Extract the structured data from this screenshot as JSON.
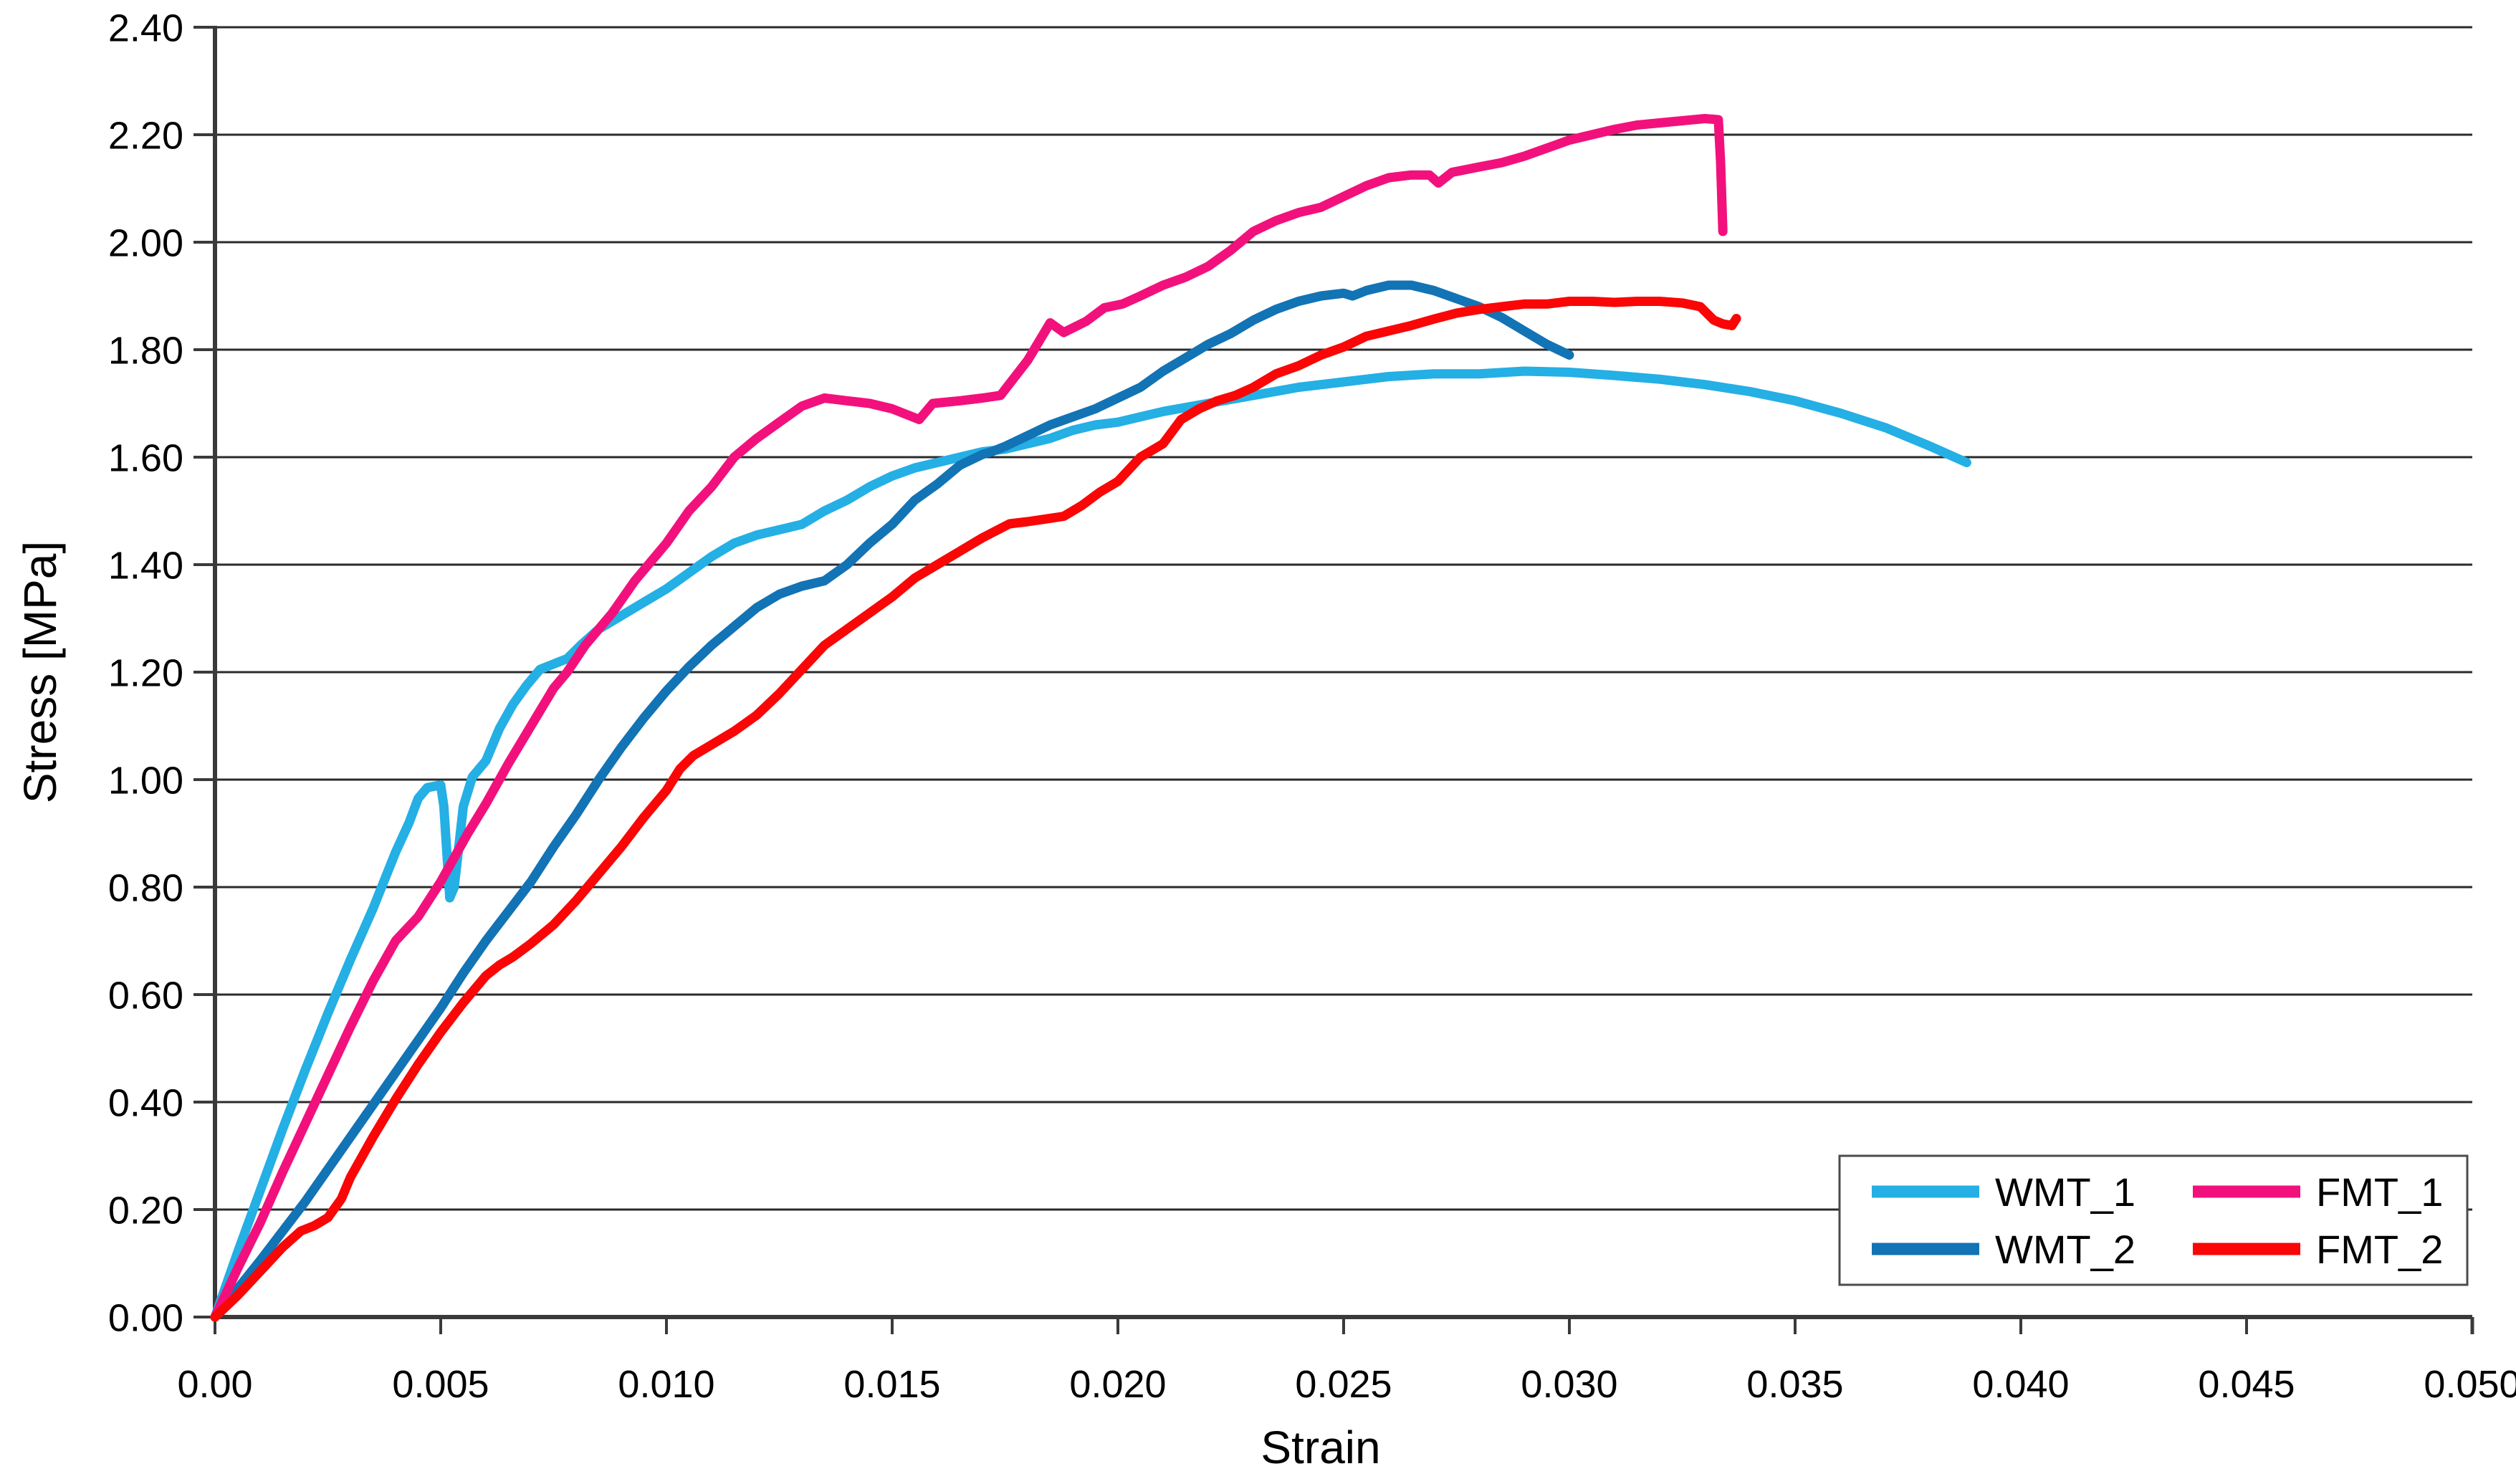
{
  "chart_data": {
    "type": "line",
    "title": "",
    "xlabel": "Strain",
    "ylabel": "Stress [MPa]",
    "xlim": [
      0,
      0.05
    ],
    "ylim": [
      0,
      2.4
    ],
    "grid": "horizontal",
    "legend_position": "bottom-right",
    "x_ticks": [
      {
        "v": 0.0,
        "label": "0.00"
      },
      {
        "v": 0.005,
        "label": "0.005"
      },
      {
        "v": 0.01,
        "label": "0.010"
      },
      {
        "v": 0.015,
        "label": "0.015"
      },
      {
        "v": 0.02,
        "label": "0.020"
      },
      {
        "v": 0.025,
        "label": "0.025"
      },
      {
        "v": 0.03,
        "label": "0.030"
      },
      {
        "v": 0.035,
        "label": "0.035"
      },
      {
        "v": 0.04,
        "label": "0.040"
      },
      {
        "v": 0.045,
        "label": "0.045"
      },
      {
        "v": 0.05,
        "label": "0.050"
      }
    ],
    "y_ticks": [
      {
        "v": 0.0,
        "label": "0.00"
      },
      {
        "v": 0.2,
        "label": "0.20"
      },
      {
        "v": 0.4,
        "label": "0.40"
      },
      {
        "v": 0.6,
        "label": "0.60"
      },
      {
        "v": 0.8,
        "label": "0.80"
      },
      {
        "v": 1.0,
        "label": "1.00"
      },
      {
        "v": 1.2,
        "label": "1.20"
      },
      {
        "v": 1.4,
        "label": "1.40"
      },
      {
        "v": 1.6,
        "label": "1.60"
      },
      {
        "v": 1.8,
        "label": "1.80"
      },
      {
        "v": 2.0,
        "label": "2.00"
      },
      {
        "v": 2.2,
        "label": "2.20"
      },
      {
        "v": 2.4,
        "label": "2.40"
      }
    ],
    "legend": {
      "entries": [
        "WMT_1",
        "WMT_2",
        "FMT_1",
        "FMT_2"
      ]
    },
    "series": [
      {
        "name": "WMT_1",
        "color": "#24AFE5",
        "points": [
          [
            0,
            0
          ],
          [
            0.0005,
            0.12
          ],
          [
            0.001,
            0.235
          ],
          [
            0.0015,
            0.35
          ],
          [
            0.002,
            0.46
          ],
          [
            0.0025,
            0.565
          ],
          [
            0.003,
            0.665
          ],
          [
            0.0035,
            0.76
          ],
          [
            0.004,
            0.865
          ],
          [
            0.0043,
            0.92
          ],
          [
            0.0045,
            0.965
          ],
          [
            0.0047,
            0.985
          ],
          [
            0.005,
            0.99
          ],
          [
            0.00507,
            0.95
          ],
          [
            0.0052,
            0.78
          ],
          [
            0.0053,
            0.8
          ],
          [
            0.0055,
            0.95
          ],
          [
            0.0057,
            1.005
          ],
          [
            0.006,
            1.035
          ],
          [
            0.0063,
            1.095
          ],
          [
            0.0066,
            1.14
          ],
          [
            0.0069,
            1.175
          ],
          [
            0.0072,
            1.205
          ],
          [
            0.0075,
            1.215
          ],
          [
            0.0078,
            1.225
          ],
          [
            0.0081,
            1.25
          ],
          [
            0.0085,
            1.28
          ],
          [
            0.009,
            1.305
          ],
          [
            0.0095,
            1.33
          ],
          [
            0.01,
            1.355
          ],
          [
            0.0105,
            1.385
          ],
          [
            0.011,
            1.415
          ],
          [
            0.0115,
            1.44
          ],
          [
            0.012,
            1.455
          ],
          [
            0.0125,
            1.465
          ],
          [
            0.013,
            1.475
          ],
          [
            0.0135,
            1.5
          ],
          [
            0.014,
            1.52
          ],
          [
            0.0145,
            1.545
          ],
          [
            0.015,
            1.565
          ],
          [
            0.0155,
            1.58
          ],
          [
            0.016,
            1.59
          ],
          [
            0.0165,
            1.6
          ],
          [
            0.017,
            1.61
          ],
          [
            0.0175,
            1.615
          ],
          [
            0.018,
            1.625
          ],
          [
            0.0185,
            1.635
          ],
          [
            0.019,
            1.65
          ],
          [
            0.0195,
            1.66
          ],
          [
            0.02,
            1.665
          ],
          [
            0.0205,
            1.675
          ],
          [
            0.021,
            1.685
          ],
          [
            0.022,
            1.7
          ],
          [
            0.023,
            1.715
          ],
          [
            0.024,
            1.73
          ],
          [
            0.025,
            1.74
          ],
          [
            0.026,
            1.75
          ],
          [
            0.027,
            1.755
          ],
          [
            0.028,
            1.755
          ],
          [
            0.029,
            1.76
          ],
          [
            0.03,
            1.758
          ],
          [
            0.031,
            1.752
          ],
          [
            0.032,
            1.745
          ],
          [
            0.033,
            1.735
          ],
          [
            0.034,
            1.722
          ],
          [
            0.035,
            1.705
          ],
          [
            0.036,
            1.682
          ],
          [
            0.037,
            1.655
          ],
          [
            0.038,
            1.62
          ],
          [
            0.0388,
            1.59
          ]
        ]
      },
      {
        "name": "WMT_2",
        "color": "#1273B5",
        "points": [
          [
            0,
            0
          ],
          [
            0.001,
            0.105
          ],
          [
            0.002,
            0.215
          ],
          [
            0.003,
            0.335
          ],
          [
            0.004,
            0.455
          ],
          [
            0.005,
            0.575
          ],
          [
            0.0055,
            0.64
          ],
          [
            0.006,
            0.7
          ],
          [
            0.0065,
            0.755
          ],
          [
            0.007,
            0.81
          ],
          [
            0.0075,
            0.875
          ],
          [
            0.008,
            0.935
          ],
          [
            0.0085,
            1.0
          ],
          [
            0.009,
            1.06
          ],
          [
            0.0095,
            1.115
          ],
          [
            0.01,
            1.165
          ],
          [
            0.0105,
            1.21
          ],
          [
            0.011,
            1.25
          ],
          [
            0.0115,
            1.285
          ],
          [
            0.012,
            1.32
          ],
          [
            0.0125,
            1.345
          ],
          [
            0.013,
            1.36
          ],
          [
            0.0135,
            1.37
          ],
          [
            0.014,
            1.4
          ],
          [
            0.0145,
            1.44
          ],
          [
            0.015,
            1.475
          ],
          [
            0.0155,
            1.52
          ],
          [
            0.016,
            1.55
          ],
          [
            0.0165,
            1.585
          ],
          [
            0.017,
            1.605
          ],
          [
            0.0172,
            1.61
          ],
          [
            0.0175,
            1.62
          ],
          [
            0.018,
            1.64
          ],
          [
            0.0185,
            1.66
          ],
          [
            0.019,
            1.675
          ],
          [
            0.0195,
            1.69
          ],
          [
            0.02,
            1.71
          ],
          [
            0.0205,
            1.73
          ],
          [
            0.021,
            1.76
          ],
          [
            0.0215,
            1.785
          ],
          [
            0.022,
            1.81
          ],
          [
            0.0225,
            1.83
          ],
          [
            0.023,
            1.855
          ],
          [
            0.0235,
            1.875
          ],
          [
            0.024,
            1.89
          ],
          [
            0.0245,
            1.9
          ],
          [
            0.025,
            1.905
          ],
          [
            0.0252,
            1.9
          ],
          [
            0.0255,
            1.91
          ],
          [
            0.026,
            1.92
          ],
          [
            0.0265,
            1.92
          ],
          [
            0.027,
            1.91
          ],
          [
            0.0275,
            1.895
          ],
          [
            0.028,
            1.88
          ],
          [
            0.0285,
            1.86
          ],
          [
            0.029,
            1.835
          ],
          [
            0.0295,
            1.81
          ],
          [
            0.03,
            1.79
          ]
        ]
      },
      {
        "name": "FMT_1",
        "color": "#F2117C",
        "points": [
          [
            0,
            0
          ],
          [
            0.0005,
            0.09
          ],
          [
            0.001,
            0.175
          ],
          [
            0.0015,
            0.27
          ],
          [
            0.002,
            0.36
          ],
          [
            0.0025,
            0.45
          ],
          [
            0.003,
            0.54
          ],
          [
            0.0035,
            0.625
          ],
          [
            0.004,
            0.7
          ],
          [
            0.0045,
            0.745
          ],
          [
            0.005,
            0.81
          ],
          [
            0.0053,
            0.855
          ],
          [
            0.0056,
            0.9
          ],
          [
            0.006,
            0.955
          ],
          [
            0.0065,
            1.03
          ],
          [
            0.007,
            1.1
          ],
          [
            0.0075,
            1.17
          ],
          [
            0.0078,
            1.2
          ],
          [
            0.0082,
            1.25
          ],
          [
            0.0088,
            1.31
          ],
          [
            0.0093,
            1.37
          ],
          [
            0.01,
            1.44
          ],
          [
            0.0105,
            1.5
          ],
          [
            0.011,
            1.545
          ],
          [
            0.0115,
            1.6
          ],
          [
            0.012,
            1.635
          ],
          [
            0.0125,
            1.665
          ],
          [
            0.013,
            1.695
          ],
          [
            0.0135,
            1.71
          ],
          [
            0.014,
            1.705
          ],
          [
            0.0145,
            1.7
          ],
          [
            0.015,
            1.69
          ],
          [
            0.0153,
            1.68
          ],
          [
            0.0156,
            1.67
          ],
          [
            0.0159,
            1.7
          ],
          [
            0.0165,
            1.705
          ],
          [
            0.017,
            1.71
          ],
          [
            0.0174,
            1.715
          ],
          [
            0.018,
            1.78
          ],
          [
            0.0185,
            1.85
          ],
          [
            0.0188,
            1.832
          ],
          [
            0.0193,
            1.853
          ],
          [
            0.0197,
            1.878
          ],
          [
            0.0201,
            1.885
          ],
          [
            0.0205,
            1.9
          ],
          [
            0.021,
            1.92
          ],
          [
            0.0215,
            1.935
          ],
          [
            0.022,
            1.955
          ],
          [
            0.0225,
            1.985
          ],
          [
            0.023,
            2.02
          ],
          [
            0.0235,
            2.04
          ],
          [
            0.024,
            2.055
          ],
          [
            0.0245,
            2.065
          ],
          [
            0.025,
            2.085
          ],
          [
            0.0255,
            2.105
          ],
          [
            0.026,
            2.12
          ],
          [
            0.0265,
            2.125
          ],
          [
            0.0269,
            2.125
          ],
          [
            0.0271,
            2.11
          ],
          [
            0.0274,
            2.13
          ],
          [
            0.028,
            2.14
          ],
          [
            0.0285,
            2.148
          ],
          [
            0.029,
            2.16
          ],
          [
            0.0295,
            2.175
          ],
          [
            0.03,
            2.19
          ],
          [
            0.0305,
            2.2
          ],
          [
            0.031,
            2.21
          ],
          [
            0.0315,
            2.218
          ],
          [
            0.032,
            2.222
          ],
          [
            0.0325,
            2.226
          ],
          [
            0.033,
            2.23
          ],
          [
            0.0333,
            2.228
          ],
          [
            0.03335,
            2.15
          ],
          [
            0.0334,
            2.02
          ]
        ]
      },
      {
        "name": "FMT_2",
        "color": "#FA0606",
        "points": [
          [
            0,
            0
          ],
          [
            0.0005,
            0.04
          ],
          [
            0.001,
            0.085
          ],
          [
            0.0015,
            0.13
          ],
          [
            0.0019,
            0.16
          ],
          [
            0.0022,
            0.17
          ],
          [
            0.0025,
            0.185
          ],
          [
            0.0028,
            0.22
          ],
          [
            0.003,
            0.26
          ],
          [
            0.0035,
            0.335
          ],
          [
            0.004,
            0.405
          ],
          [
            0.0045,
            0.47
          ],
          [
            0.005,
            0.53
          ],
          [
            0.0055,
            0.585
          ],
          [
            0.006,
            0.635
          ],
          [
            0.0063,
            0.655
          ],
          [
            0.0066,
            0.67
          ],
          [
            0.007,
            0.695
          ],
          [
            0.0075,
            0.73
          ],
          [
            0.008,
            0.775
          ],
          [
            0.0085,
            0.825
          ],
          [
            0.009,
            0.875
          ],
          [
            0.0095,
            0.93
          ],
          [
            0.0098,
            0.96
          ],
          [
            0.01,
            0.98
          ],
          [
            0.0103,
            1.02
          ],
          [
            0.0106,
            1.045
          ],
          [
            0.011,
            1.065
          ],
          [
            0.0115,
            1.09
          ],
          [
            0.012,
            1.12
          ],
          [
            0.0125,
            1.16
          ],
          [
            0.013,
            1.205
          ],
          [
            0.0135,
            1.25
          ],
          [
            0.014,
            1.28
          ],
          [
            0.0145,
            1.31
          ],
          [
            0.015,
            1.34
          ],
          [
            0.0155,
            1.375
          ],
          [
            0.016,
            1.4
          ],
          [
            0.0165,
            1.425
          ],
          [
            0.017,
            1.45
          ],
          [
            0.0176,
            1.476
          ],
          [
            0.018,
            1.48
          ],
          [
            0.0184,
            1.485
          ],
          [
            0.0188,
            1.49
          ],
          [
            0.0192,
            1.51
          ],
          [
            0.0196,
            1.535
          ],
          [
            0.02,
            1.555
          ],
          [
            0.0205,
            1.6
          ],
          [
            0.021,
            1.625
          ],
          [
            0.0214,
            1.67
          ],
          [
            0.0218,
            1.69
          ],
          [
            0.0222,
            1.705
          ],
          [
            0.0226,
            1.715
          ],
          [
            0.023,
            1.73
          ],
          [
            0.0235,
            1.755
          ],
          [
            0.024,
            1.77
          ],
          [
            0.0245,
            1.79
          ],
          [
            0.025,
            1.805
          ],
          [
            0.0255,
            1.825
          ],
          [
            0.026,
            1.835
          ],
          [
            0.0265,
            1.845
          ],
          [
            0.027,
            1.857
          ],
          [
            0.0275,
            1.868
          ],
          [
            0.028,
            1.875
          ],
          [
            0.0285,
            1.88
          ],
          [
            0.029,
            1.885
          ],
          [
            0.0295,
            1.885
          ],
          [
            0.03,
            1.89
          ],
          [
            0.0305,
            1.89
          ],
          [
            0.031,
            1.888
          ],
          [
            0.0315,
            1.89
          ],
          [
            0.032,
            1.89
          ],
          [
            0.0325,
            1.887
          ],
          [
            0.0329,
            1.88
          ],
          [
            0.0332,
            1.855
          ],
          [
            0.0334,
            1.848
          ],
          [
            0.0336,
            1.845
          ],
          [
            0.0337,
            1.858
          ]
        ]
      }
    ]
  }
}
